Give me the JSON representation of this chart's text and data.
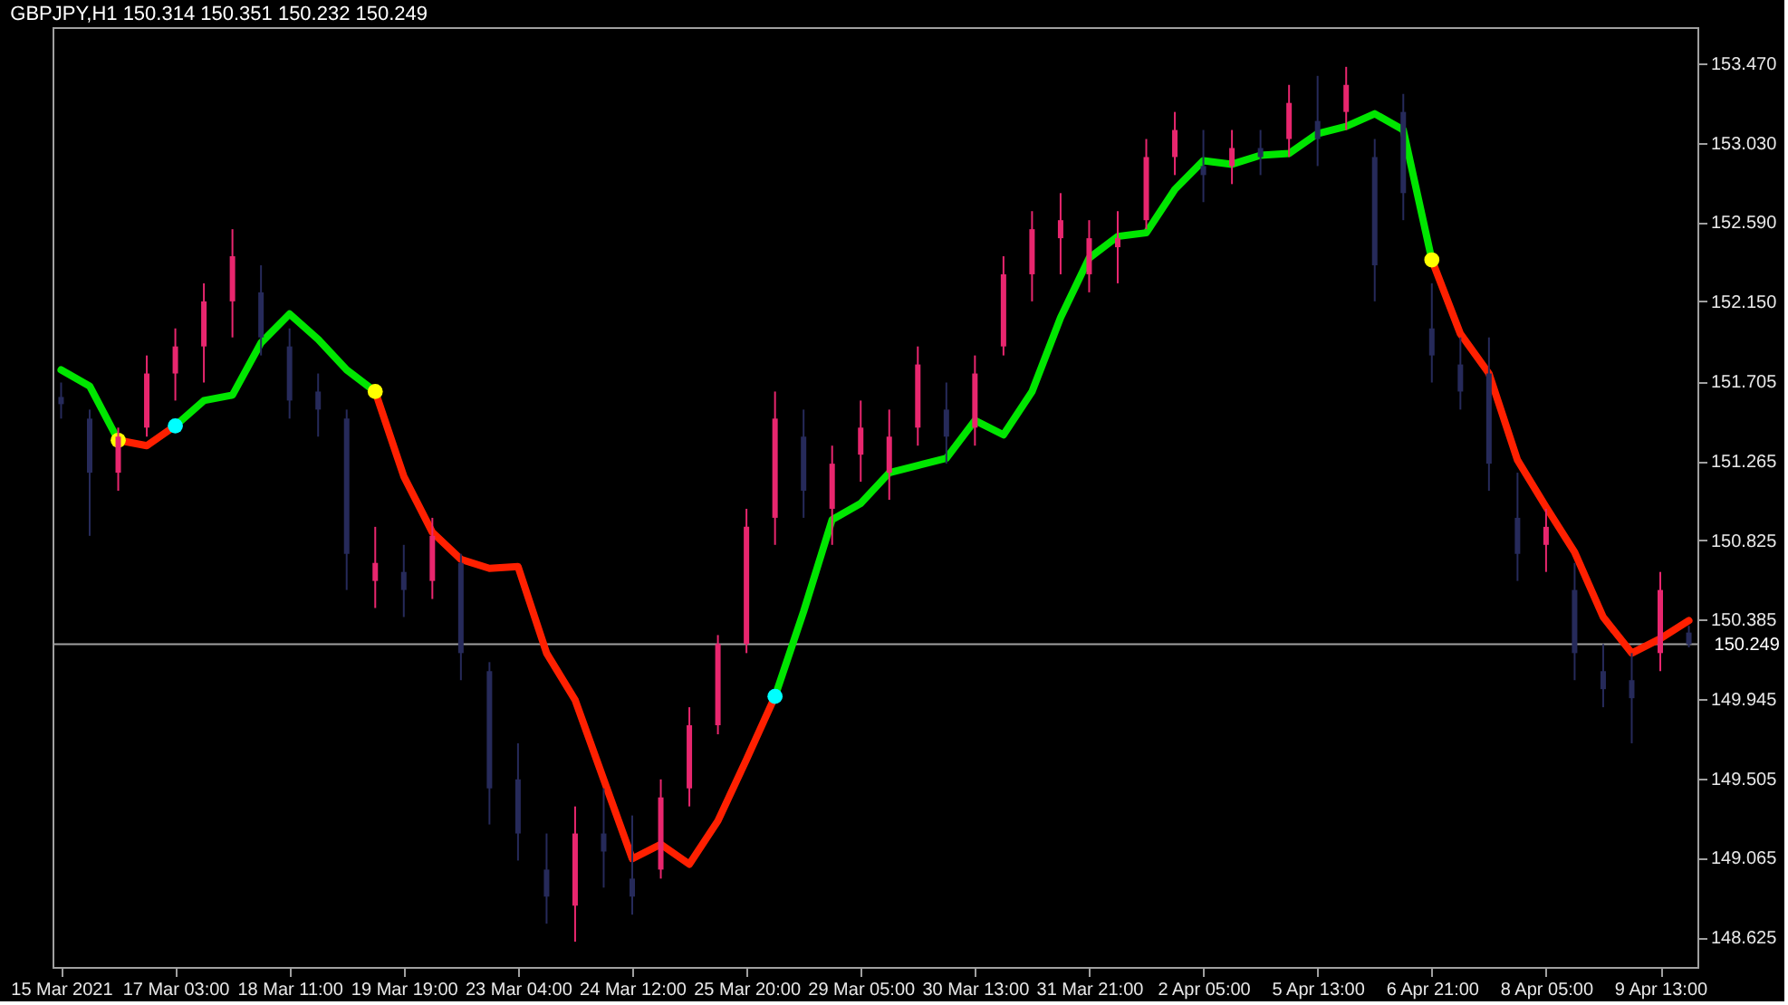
{
  "chart_data": {
    "type": "candlestick",
    "title": "GBPJPY,H1  150.314 150.351 150.232 150.249",
    "ylim": [
      148.46,
      153.67
    ],
    "categories": [
      "15 Mar 2021",
      null,
      null,
      null,
      "17 Mar 03:00",
      null,
      null,
      null,
      "18 Mar 11:00",
      null,
      null,
      null,
      "19 Mar 19:00",
      null,
      null,
      null,
      "23 Mar 04:00",
      null,
      null,
      null,
      "24 Mar 12:00",
      null,
      null,
      null,
      "25 Mar 20:00",
      null,
      null,
      null,
      "29 Mar 05:00",
      null,
      null,
      null,
      "30 Mar 13:00",
      null,
      null,
      null,
      "31 Mar 21:00",
      null,
      null,
      null,
      "2 Apr 05:00",
      null,
      null,
      null,
      "5 Apr 13:00",
      null,
      null,
      null,
      "6 Apr 21:00",
      null,
      null,
      null,
      "8 Apr 05:00",
      null,
      null,
      null,
      "9 Apr 13:00",
      null
    ],
    "yticks": [
      {
        "value": 148.625,
        "label": "148.625"
      },
      {
        "value": 149.065,
        "label": "149.065"
      },
      {
        "value": 149.505,
        "label": "149.505"
      },
      {
        "value": 149.945,
        "label": "149.945"
      },
      {
        "value": 150.385,
        "label": "150.385"
      },
      {
        "value": 150.825,
        "label": "150.825"
      },
      {
        "value": 151.265,
        "label": "151.265"
      },
      {
        "value": 151.705,
        "label": "151.705"
      },
      {
        "value": 152.15,
        "label": "152.150"
      },
      {
        "value": 152.59,
        "label": "152.590"
      },
      {
        "value": 153.03,
        "label": "153.030"
      },
      {
        "value": 153.47,
        "label": "153.470"
      }
    ],
    "ohlc": [
      [
        151.62,
        151.7,
        151.5,
        151.58
      ],
      [
        151.5,
        151.55,
        150.85,
        151.2
      ],
      [
        151.2,
        151.45,
        151.1,
        151.4
      ],
      [
        151.45,
        151.85,
        151.4,
        151.75
      ],
      [
        151.75,
        152.0,
        151.6,
        151.9
      ],
      [
        151.9,
        152.25,
        151.7,
        152.15
      ],
      [
        152.15,
        152.55,
        151.95,
        152.4
      ],
      [
        152.2,
        152.35,
        151.85,
        151.95
      ],
      [
        151.9,
        152.0,
        151.5,
        151.6
      ],
      [
        151.65,
        151.75,
        151.4,
        151.55
      ],
      [
        151.5,
        151.55,
        150.55,
        150.75
      ],
      [
        150.6,
        150.9,
        150.45,
        150.7
      ],
      [
        150.65,
        150.8,
        150.4,
        150.55
      ],
      [
        150.6,
        150.95,
        150.5,
        150.85
      ],
      [
        150.7,
        150.75,
        150.05,
        150.2
      ],
      [
        150.1,
        150.15,
        149.25,
        149.45
      ],
      [
        149.5,
        149.7,
        149.05,
        149.2
      ],
      [
        149.0,
        149.2,
        148.7,
        148.85
      ],
      [
        148.8,
        149.35,
        148.6,
        149.2
      ],
      [
        149.2,
        149.45,
        148.9,
        149.1
      ],
      [
        148.95,
        149.3,
        148.75,
        148.85
      ],
      [
        149.0,
        149.5,
        148.95,
        149.4
      ],
      [
        149.45,
        149.9,
        149.35,
        149.8
      ],
      [
        149.8,
        150.3,
        149.75,
        150.25
      ],
      [
        150.25,
        151.0,
        150.2,
        150.9
      ],
      [
        150.95,
        151.65,
        150.8,
        151.5
      ],
      [
        151.4,
        151.55,
        150.95,
        151.1
      ],
      [
        151.0,
        151.35,
        150.8,
        151.25
      ],
      [
        151.3,
        151.6,
        151.15,
        151.45
      ],
      [
        151.2,
        151.55,
        151.05,
        151.4
      ],
      [
        151.45,
        151.9,
        151.35,
        151.8
      ],
      [
        151.55,
        151.7,
        151.25,
        151.4
      ],
      [
        151.45,
        151.85,
        151.35,
        151.75
      ],
      [
        151.9,
        152.4,
        151.85,
        152.3
      ],
      [
        152.3,
        152.65,
        152.15,
        152.55
      ],
      [
        152.5,
        152.75,
        152.3,
        152.6
      ],
      [
        152.3,
        152.6,
        152.2,
        152.5
      ],
      [
        152.45,
        152.65,
        152.25,
        152.5
      ],
      [
        152.6,
        153.05,
        152.55,
        152.95
      ],
      [
        152.95,
        153.2,
        152.85,
        153.1
      ],
      [
        152.9,
        153.1,
        152.7,
        152.85
      ],
      [
        152.9,
        153.1,
        152.8,
        153.0
      ],
      [
        153.0,
        153.1,
        152.85,
        152.95
      ],
      [
        153.05,
        153.35,
        152.95,
        153.25
      ],
      [
        153.15,
        153.4,
        152.9,
        153.05
      ],
      [
        153.2,
        153.45,
        153.1,
        153.35
      ],
      [
        152.95,
        153.05,
        152.15,
        152.35
      ],
      [
        153.2,
        153.3,
        152.6,
        152.75
      ],
      [
        152.0,
        152.25,
        151.7,
        151.85
      ],
      [
        151.8,
        151.95,
        151.55,
        151.65
      ],
      [
        151.75,
        151.95,
        151.1,
        151.25
      ],
      [
        150.95,
        151.2,
        150.6,
        150.75
      ],
      [
        150.8,
        151.0,
        150.65,
        150.9
      ],
      [
        150.55,
        150.7,
        150.05,
        150.2
      ],
      [
        150.1,
        150.25,
        149.9,
        150.0
      ],
      [
        150.05,
        150.2,
        149.7,
        149.95
      ],
      [
        150.2,
        150.65,
        150.1,
        150.55
      ],
      [
        150.314,
        150.351,
        150.232,
        150.249
      ]
    ],
    "colors": [
      "#262a5a",
      "#262a5a",
      "#e8266e",
      "#e8266e",
      "#e8266e",
      "#e8266e",
      "#e8266e",
      "#262a5a",
      "#262a5a",
      "#262a5a",
      "#262a5a",
      "#e8266e",
      "#262a5a",
      "#e8266e",
      "#262a5a",
      "#262a5a",
      "#262a5a",
      "#262a5a",
      "#e8266e",
      "#262a5a",
      "#262a5a",
      "#e8266e",
      "#e8266e",
      "#e8266e",
      "#e8266e",
      "#e8266e",
      "#262a5a",
      "#e8266e",
      "#e8266e",
      "#e8266e",
      "#e8266e",
      "#262a5a",
      "#e8266e",
      "#e8266e",
      "#e8266e",
      "#e8266e",
      "#e8266e",
      "#e8266e",
      "#e8266e",
      "#e8266e",
      "#262a5a",
      "#e8266e",
      "#262a5a",
      "#e8266e",
      "#262a5a",
      "#e8266e",
      "#262a5a",
      "#262a5a",
      "#262a5a",
      "#262a5a",
      "#262a5a",
      "#262a5a",
      "#e8266e",
      "#262a5a",
      "#262a5a",
      "#262a5a",
      "#e8266e",
      "#262a5a"
    ],
    "series": [
      {
        "type": "line",
        "color": "#00e600",
        "values": [
          151.77,
          151.68,
          151.38,
          null,
          151.46,
          151.6,
          151.63,
          151.92,
          152.08,
          151.94,
          151.77,
          151.65,
          null,
          null,
          null,
          null,
          null,
          null,
          null,
          null,
          null,
          null,
          null,
          null,
          null,
          149.96,
          150.43,
          150.94,
          151.03,
          151.2,
          151.24,
          151.28,
          151.49,
          151.41,
          151.65,
          152.06,
          152.39,
          152.51,
          152.53,
          152.77,
          152.93,
          152.91,
          152.96,
          152.97,
          153.08,
          153.12,
          153.19,
          153.1,
          152.38,
          null,
          null,
          null,
          null,
          null,
          null,
          null,
          null,
          null
        ]
      },
      {
        "type": "line",
        "color": "#ff2000",
        "values": [
          null,
          null,
          151.38,
          151.35,
          151.46,
          null,
          null,
          null,
          null,
          null,
          null,
          151.65,
          151.18,
          150.87,
          150.72,
          150.67,
          150.68,
          150.2,
          149.94,
          149.5,
          149.06,
          149.14,
          149.03,
          149.27,
          149.61,
          149.96,
          null,
          null,
          null,
          null,
          null,
          null,
          null,
          null,
          null,
          null,
          null,
          null,
          null,
          null,
          null,
          null,
          null,
          null,
          null,
          null,
          null,
          null,
          152.38,
          151.97,
          151.75,
          151.27,
          151.01,
          150.76,
          150.4,
          150.2,
          150.28,
          150.38
        ]
      },
      {
        "type": "scatter",
        "color": "#ffff00",
        "values": [
          null,
          null,
          151.38,
          null,
          null,
          null,
          null,
          null,
          null,
          null,
          null,
          151.65,
          null,
          null,
          null,
          null,
          null,
          null,
          null,
          null,
          null,
          null,
          null,
          null,
          null,
          null,
          null,
          null,
          null,
          null,
          null,
          null,
          null,
          null,
          null,
          null,
          null,
          null,
          null,
          null,
          null,
          null,
          null,
          null,
          null,
          null,
          null,
          null,
          152.38,
          null,
          null,
          null,
          null,
          null,
          null,
          null,
          null,
          null
        ]
      },
      {
        "type": "scatter",
        "color": "#00ffff",
        "values": [
          null,
          null,
          null,
          null,
          151.46,
          null,
          null,
          null,
          null,
          null,
          null,
          null,
          null,
          null,
          null,
          null,
          null,
          null,
          null,
          null,
          null,
          null,
          null,
          null,
          null,
          149.96,
          null,
          null,
          null,
          null,
          null,
          null,
          null,
          null,
          null,
          null,
          null,
          null,
          null,
          null,
          null,
          null,
          null,
          null,
          null,
          null,
          null,
          null,
          null,
          null,
          null,
          null,
          null,
          null,
          null,
          null,
          null,
          null
        ]
      }
    ],
    "ref_lines": [
      {
        "axis": "y",
        "value": 150.249,
        "label": "150.249",
        "color": "#a0a0a0"
      }
    ]
  }
}
